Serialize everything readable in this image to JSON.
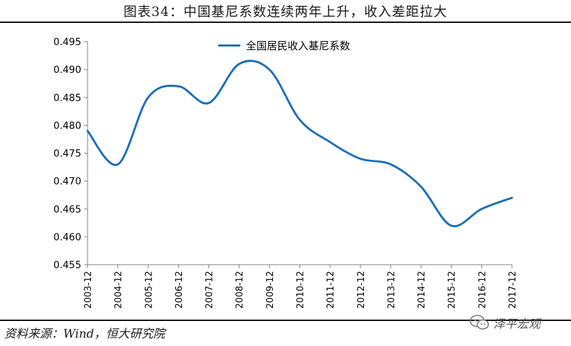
{
  "title": "图表34：中国基尼系数连续两年上升，收入差距拉大",
  "source": "资料来源：Wind，恒大研究院",
  "watermark": {
    "text": "泽平宏观",
    "icon": "wechat-icon"
  },
  "colors": {
    "series": "#1f6fb4",
    "axis": "#808080",
    "text": "#000000"
  },
  "chart_data": {
    "type": "line",
    "x": [
      "2003-12",
      "2004-12",
      "2005-12",
      "2006-12",
      "2007-12",
      "2008-12",
      "2009-12",
      "2010-12",
      "2011-12",
      "2012-12",
      "2013-12",
      "2014-12",
      "2015-12",
      "2016-12",
      "2017-12"
    ],
    "series": [
      {
        "name": "全国居民收入基尼系数",
        "values": [
          0.479,
          0.473,
          0.485,
          0.487,
          0.484,
          0.491,
          0.49,
          0.481,
          0.477,
          0.474,
          0.473,
          0.469,
          0.462,
          0.465,
          0.467
        ]
      }
    ],
    "ylim": [
      0.455,
      0.495
    ],
    "yticks": [
      "0.455",
      "0.460",
      "0.465",
      "0.470",
      "0.475",
      "0.480",
      "0.485",
      "0.490",
      "0.495"
    ],
    "legend_position": "top-center",
    "grid": false,
    "xlabel": "",
    "ylabel": ""
  }
}
